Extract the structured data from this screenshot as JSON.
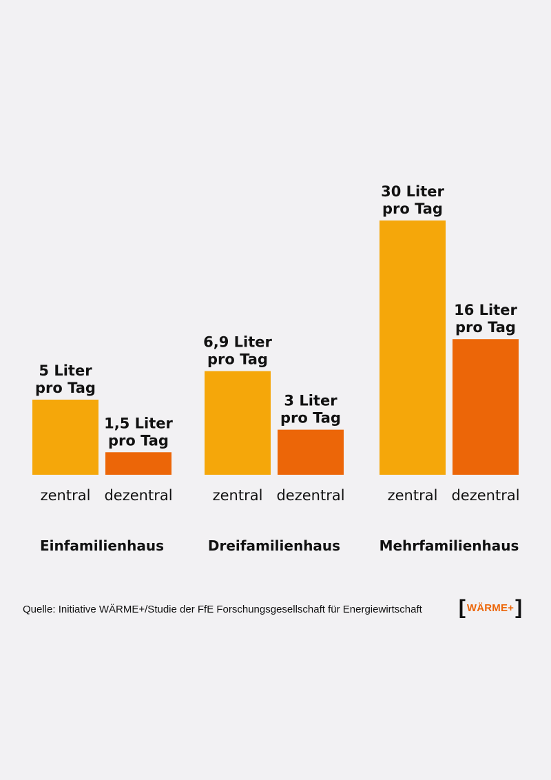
{
  "chart_data": {
    "type": "bar",
    "unit": "Liter pro Tag",
    "groups": [
      {
        "name": "Einfamilienhaus",
        "bars": [
          {
            "category": "zentral",
            "value": 5,
            "label_line1": "5 Liter",
            "label_line2": "pro Tag"
          },
          {
            "category": "dezentral",
            "value": 1.5,
            "label_line1": "1,5 Liter",
            "label_line2": "pro Tag"
          }
        ]
      },
      {
        "name": "Dreifamilienhaus",
        "bars": [
          {
            "category": "zentral",
            "value": 6.9,
            "label_line1": "6,9 Liter",
            "label_line2": "pro Tag"
          },
          {
            "category": "dezentral",
            "value": 3,
            "label_line1": "3 Liter",
            "label_line2": "pro Tag"
          }
        ]
      },
      {
        "name": "Mehrfamilienhaus",
        "bars": [
          {
            "category": "zentral",
            "value": 30,
            "label_line1": "30 Liter",
            "label_line2": "pro Tag"
          },
          {
            "category": "dezentral",
            "value": 16,
            "label_line1": "16 Liter",
            "label_line2": "pro Tag"
          }
        ]
      }
    ],
    "group_scales": [
      {
        "group": "Einfamilienhaus",
        "ymax": 10
      },
      {
        "group": "Dreifamilienhaus",
        "ymax": 10
      },
      {
        "group": "Mehrfamilienhaus",
        "ymax": 40
      }
    ],
    "colors": {
      "zentral": "#f5a70a",
      "dezentral": "#ec6608"
    },
    "grid": false,
    "legend": "none"
  },
  "footer": {
    "source": "Quelle: Initiative WÄRME+/Studie der FfE Forschungsgesellschaft für Energiewirtschaft",
    "logo_text": "WÄRME+"
  }
}
